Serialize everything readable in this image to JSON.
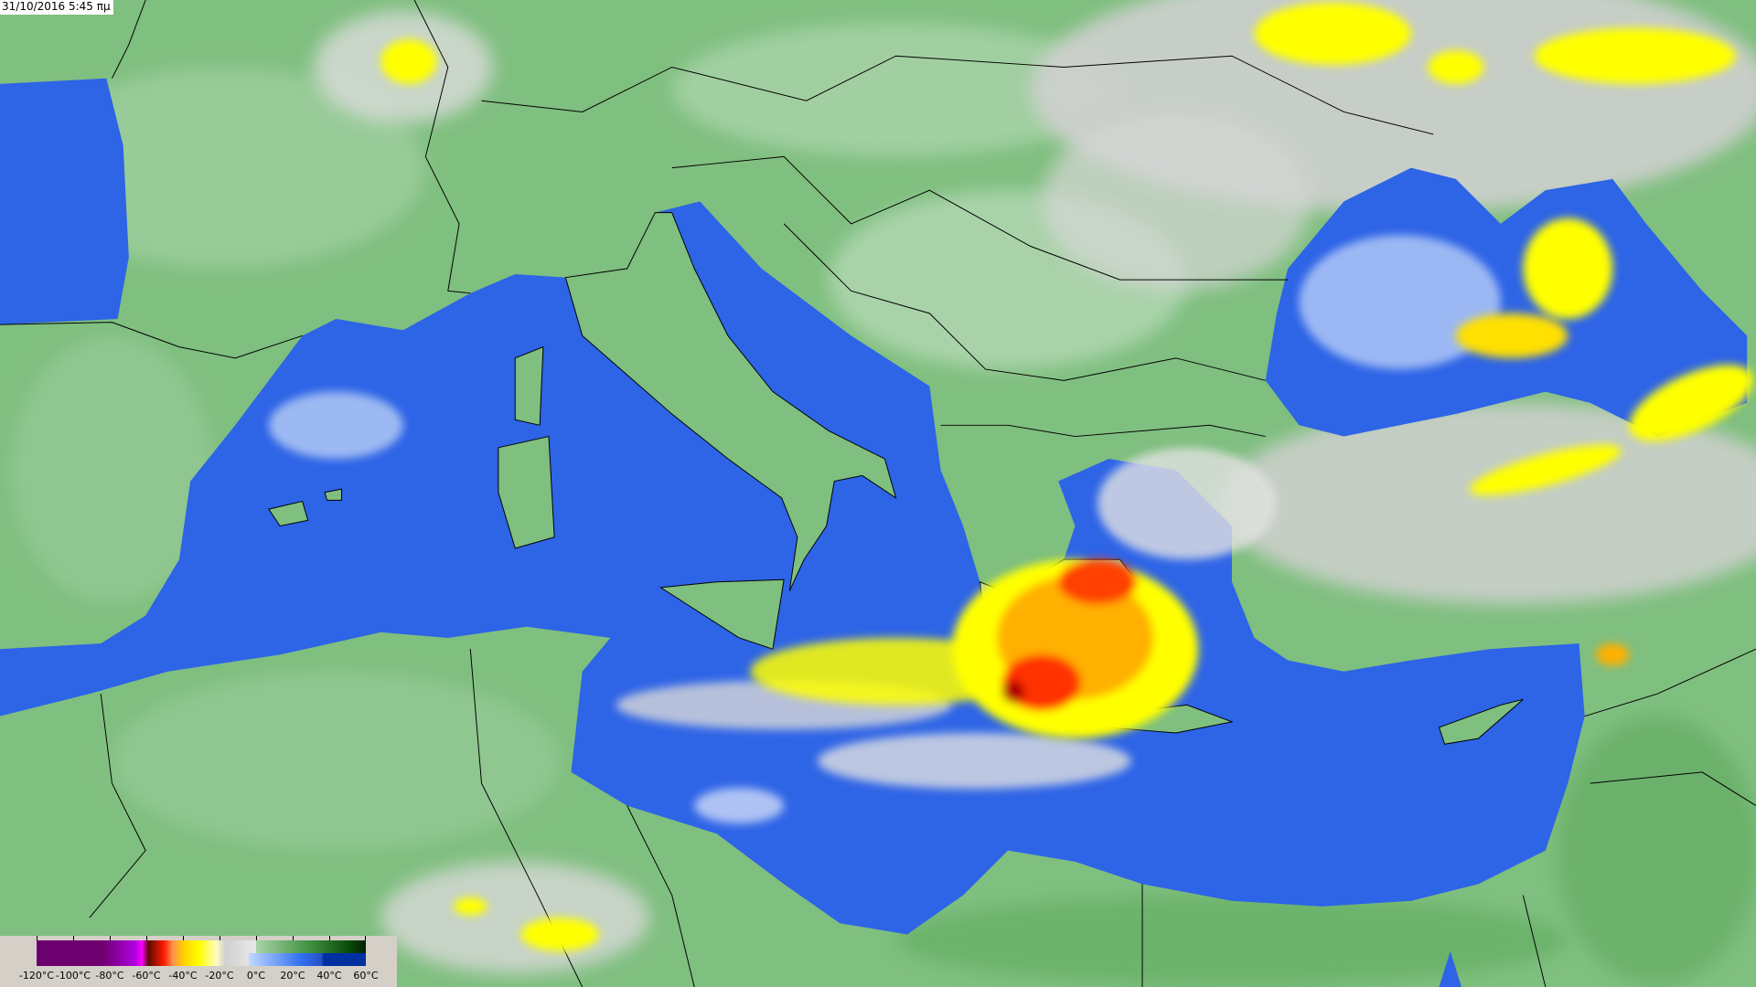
{
  "timestamp": "31/10/2016 5:45 πμ",
  "legend": {
    "labels": [
      "-120°C",
      "-100°C",
      "-80°C",
      "-60°C",
      "-40°C",
      "-20°C",
      "0°C",
      "20°C",
      "40°C",
      "60°C"
    ],
    "colors": {
      "cold_purple": "#6a006e",
      "magenta": "#ff00ff",
      "dark_red": "#5a0a00",
      "red": "#ff1a00",
      "yellow": "#ffff00",
      "light_gray": "#e0e0e0",
      "land_green": "#7fbf7f",
      "dark_green": "#002a00",
      "sea_light_blue": "#a8c8ff",
      "sea_blue": "#2f6ff0",
      "deep_blue": "#0030a0"
    }
  },
  "map": {
    "land_color": "#7fbf7f",
    "sea_color": "#2e64e6",
    "cloud_colors": [
      "#d8d8d8",
      "#ffff00",
      "#ffa500",
      "#ff2a00",
      "#b00000"
    ]
  }
}
